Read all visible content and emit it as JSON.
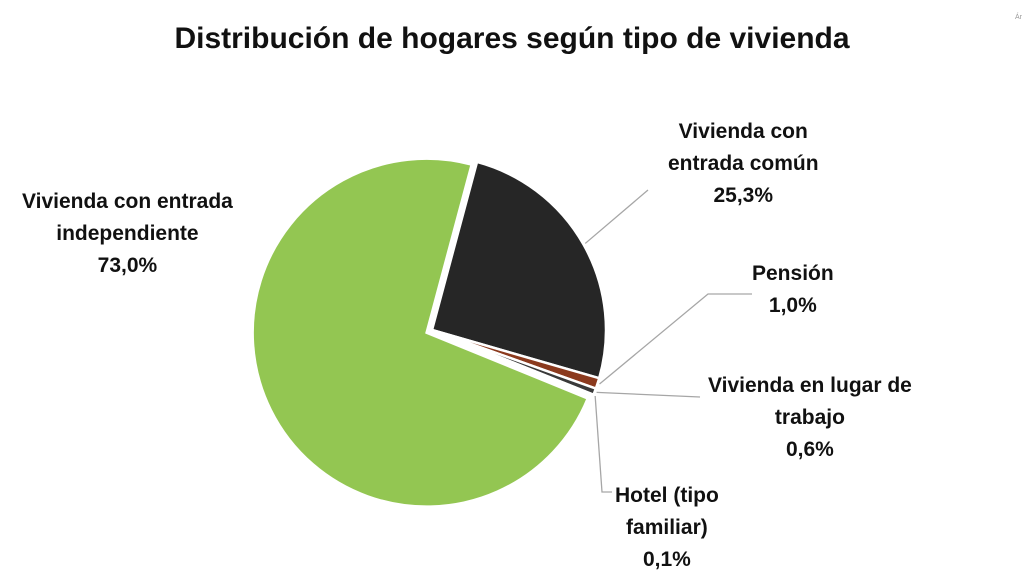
{
  "corner_mark": "Ár",
  "chart_data": {
    "type": "pie",
    "title": "Distribución de hogares según tipo de vivienda",
    "slices": [
      {
        "label_lines": [
          "Vivienda con",
          "entrada común"
        ],
        "value_text": "25,3%",
        "value": 25.3,
        "color": "#262626"
      },
      {
        "label_lines": [
          "Pensión"
        ],
        "value_text": "1,0%",
        "value": 1.0,
        "color": "#8b3a1e"
      },
      {
        "label_lines": [
          "Vivienda en lugar de",
          "trabajo"
        ],
        "value_text": "0,6%",
        "value": 0.6,
        "color": "#3a3a3a"
      },
      {
        "label_lines": [
          "Hotel (tipo",
          "familiar)"
        ],
        "value_text": "0,1%",
        "value": 0.1,
        "color": "#6b6b6b"
      },
      {
        "label_lines": [
          "Vivienda con entrada",
          "independiente"
        ],
        "value_text": "73,0%",
        "value": 73.0,
        "color": "#93c652"
      }
    ]
  }
}
